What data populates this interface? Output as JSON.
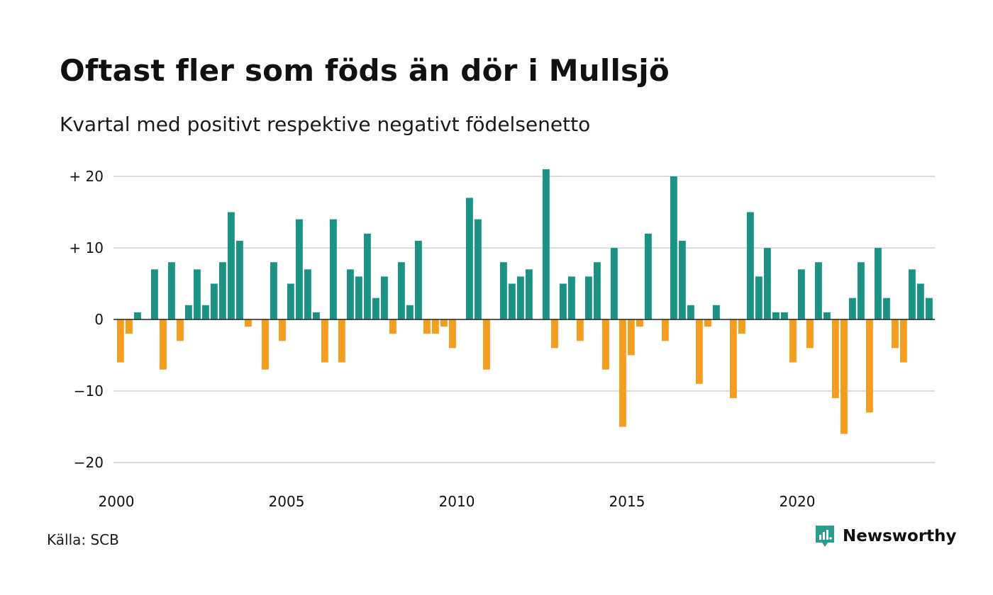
{
  "header": {
    "title": "Oftast fler som föds än dör i Mullsjö",
    "subtitle": "Kvartal med positivt respektive negativt födelsenetto"
  },
  "footer": {
    "source": "Källa: SCB",
    "brand": "Newsworthy"
  },
  "colors": {
    "positive": "#1a9384",
    "negative": "#f59e1e",
    "grid": "#dddddd",
    "brand": "#2a9d8f"
  },
  "chart_data": {
    "type": "bar",
    "title": "Oftast fler som föds än dör i Mullsjö",
    "subtitle": "Kvartal med positivt respektive negativt födelsenetto",
    "xlabel": "",
    "ylabel": "",
    "ylim": [
      -20,
      21
    ],
    "yticks": [
      {
        "value": 20,
        "label": "+ 20"
      },
      {
        "value": 10,
        "label": "+ 10"
      },
      {
        "value": 0,
        "label": "0"
      },
      {
        "value": -10,
        "label": "−10"
      },
      {
        "value": -20,
        "label": "−20"
      }
    ],
    "xticks": [
      "2000",
      "2005",
      "2010",
      "2015",
      "2020"
    ],
    "grid": true,
    "legend": "none",
    "start_year": 2000,
    "values": [
      -6,
      -2,
      1,
      0,
      7,
      -7,
      8,
      -3,
      2,
      7,
      2,
      5,
      8,
      15,
      11,
      -1,
      0,
      -7,
      8,
      -3,
      5,
      14,
      7,
      1,
      -6,
      14,
      -6,
      7,
      6,
      12,
      3,
      6,
      -2,
      8,
      2,
      11,
      -2,
      -2,
      -1,
      -4,
      0,
      17,
      14,
      -7,
      0,
      8,
      5,
      6,
      7,
      0,
      21,
      -4,
      5,
      6,
      -3,
      6,
      8,
      -7,
      10,
      -15,
      -5,
      -1,
      12,
      0,
      -3,
      20,
      11,
      2,
      -9,
      -1,
      2,
      0,
      -11,
      -2,
      15,
      6,
      10,
      1,
      1,
      -6,
      7,
      -4,
      8,
      1,
      -11,
      -16,
      3,
      8,
      -13,
      10,
      3,
      -4,
      -6,
      7,
      5,
      3
    ]
  }
}
